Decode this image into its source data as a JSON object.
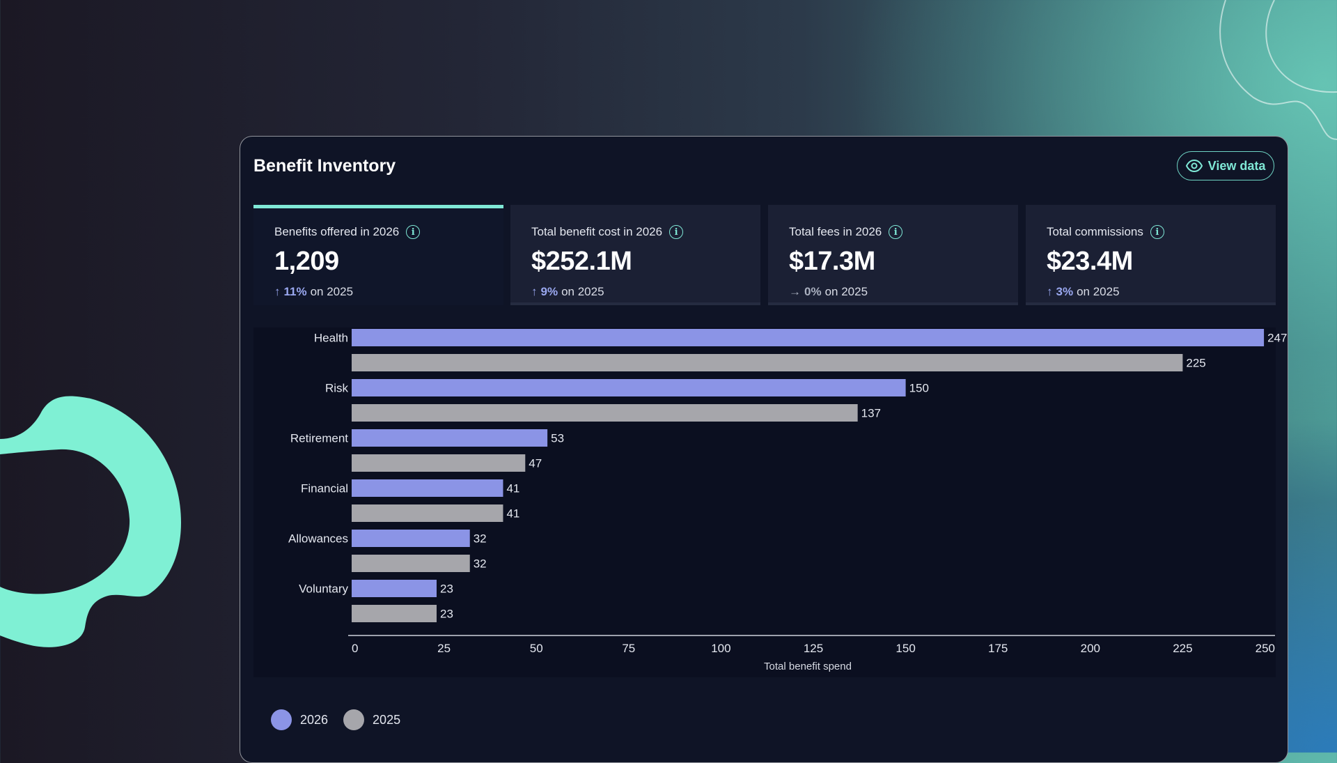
{
  "card": {
    "title": "Benefit Inventory",
    "view_button_label": "View data"
  },
  "kpis": [
    {
      "label": "Benefits offered in 2026",
      "value": "1,209",
      "arrow": "↑",
      "pct": "11%",
      "suffix": "on 2025",
      "active": true
    },
    {
      "label": "Total benefit cost in 2026",
      "value": "$252.1M",
      "arrow": "↑",
      "pct": "9%",
      "suffix": "on 2025",
      "active": false
    },
    {
      "label": "Total fees in 2026",
      "value": "$17.3M",
      "arrow": "→",
      "pct": "0%",
      "suffix": "on 2025",
      "active": false
    },
    {
      "label": "Total commissions",
      "value": "$23.4M",
      "arrow": "↑",
      "pct": "3%",
      "suffix": "on 2025",
      "active": false
    }
  ],
  "colors": {
    "accent": "#7fe8d6",
    "series_2026": "#8b94e6",
    "series_2025": "#a6a6ab"
  },
  "chart_data": {
    "type": "bar",
    "orientation": "horizontal",
    "categories": [
      "Health",
      "Risk",
      "Retirement",
      "Financial",
      "Allowances",
      "Voluntary"
    ],
    "series": [
      {
        "name": "2026",
        "values": [
          247,
          150,
          53,
          41,
          32,
          23
        ]
      },
      {
        "name": "2025",
        "values": [
          225,
          137,
          47,
          41,
          32,
          23
        ]
      }
    ],
    "xlim": [
      0,
      250
    ],
    "xticks": [
      0,
      25,
      50,
      75,
      100,
      125,
      150,
      175,
      200,
      225,
      250
    ],
    "xlabel": "Total benefit spend",
    "grid": false,
    "legend_position": "bottom-left"
  },
  "legend": [
    {
      "label": "2026"
    },
    {
      "label": "2025"
    }
  ]
}
